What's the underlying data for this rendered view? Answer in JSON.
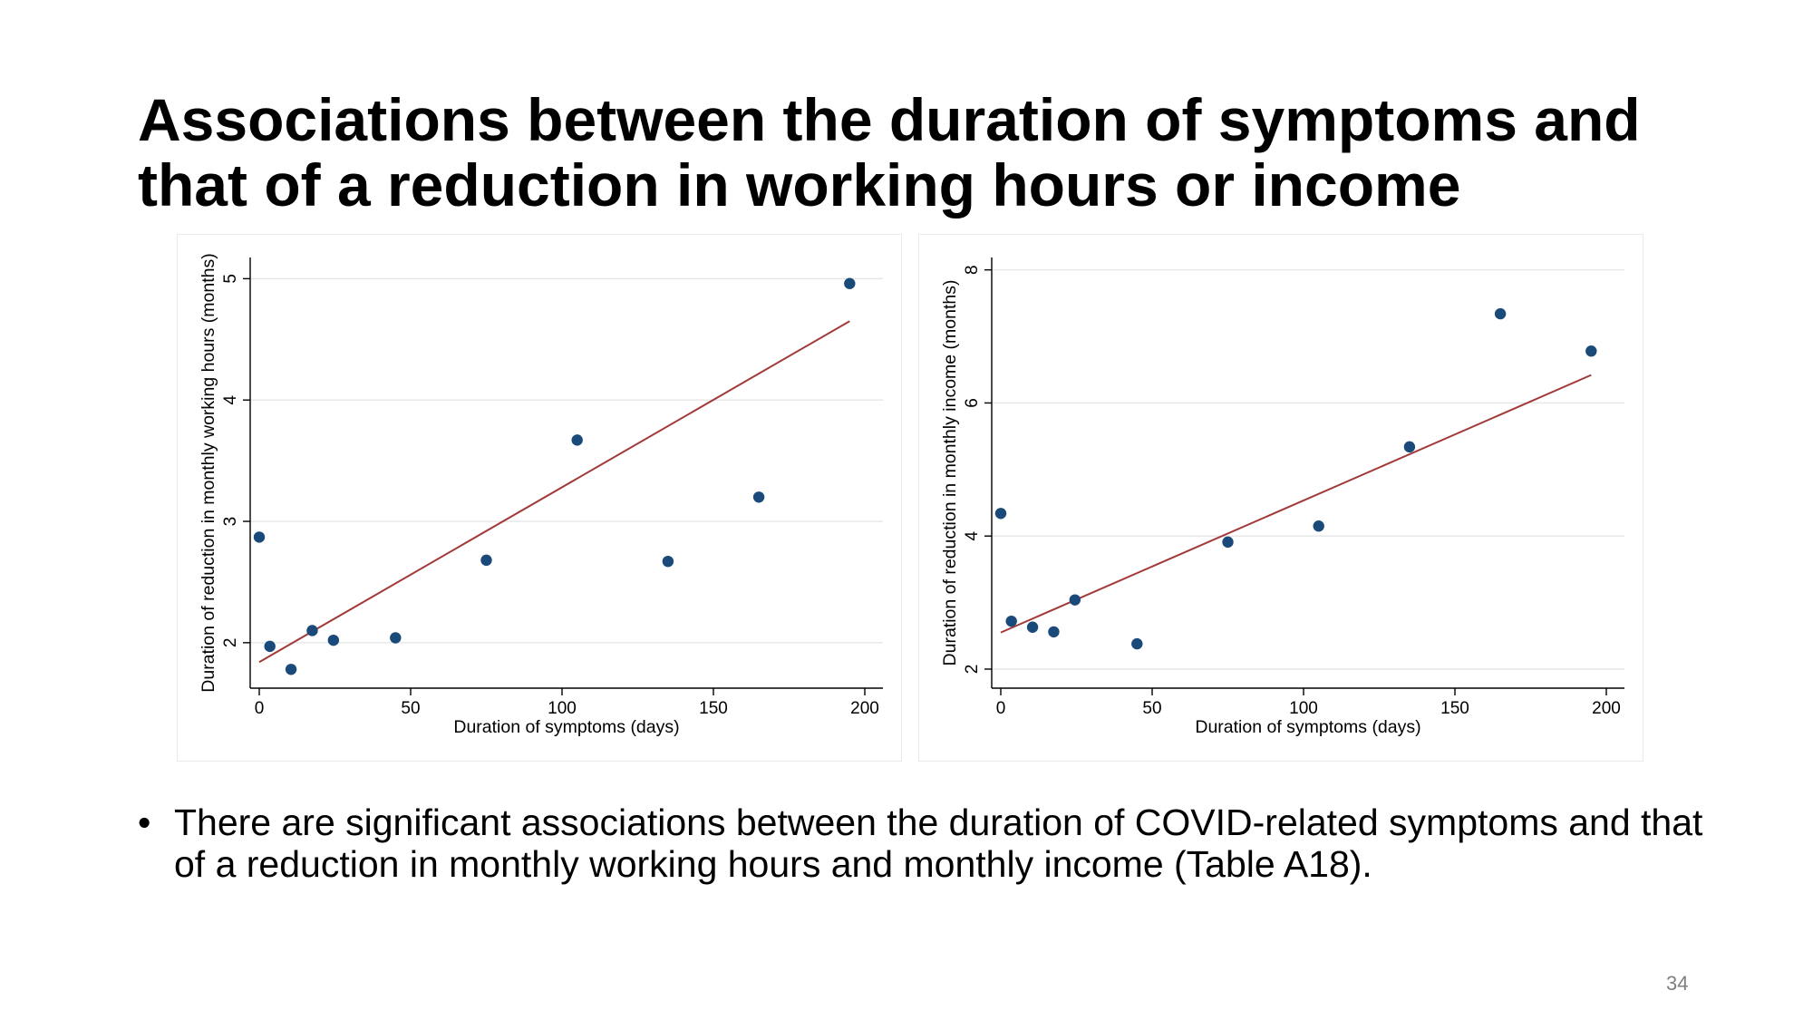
{
  "slide": {
    "title": "Associations between the duration of symptoms and that of a reduction in working hours or income",
    "bullet": "There are significant associations between the duration of COVID-related symptoms and that of a reduction in monthly working hours and monthly income (Table A18).",
    "bullet_marker": "•",
    "page_number": "34"
  },
  "chart_data": [
    {
      "type": "scatter",
      "xlabel": "Duration of symptoms (days)",
      "ylabel": "Duration of reduction in monthly working hours (months)",
      "xlim": [
        0,
        200
      ],
      "ylim": [
        1.7,
        5.1
      ],
      "xticks": [
        0,
        50,
        100,
        150,
        200
      ],
      "yticks": [
        2,
        3,
        4,
        5
      ],
      "grid": true,
      "points": [
        {
          "x": 0,
          "y": 2.87
        },
        {
          "x": 3.5,
          "y": 1.97
        },
        {
          "x": 10.5,
          "y": 1.78
        },
        {
          "x": 17.5,
          "y": 2.1
        },
        {
          "x": 24.5,
          "y": 2.02
        },
        {
          "x": 45,
          "y": 2.04
        },
        {
          "x": 75,
          "y": 2.68
        },
        {
          "x": 105,
          "y": 3.67
        },
        {
          "x": 135,
          "y": 2.67
        },
        {
          "x": 165,
          "y": 3.2
        },
        {
          "x": 195,
          "y": 4.96
        }
      ],
      "fit_line": {
        "x": [
          0,
          195
        ],
        "y": [
          1.84,
          4.65
        ]
      },
      "colors": {
        "points": "#1a4a7a",
        "fit_line": "#a23a3a"
      }
    },
    {
      "type": "scatter",
      "xlabel": "Duration of symptoms (days)",
      "ylabel": "Duration of reduction in monthly income (months)",
      "xlim": [
        0,
        200
      ],
      "ylim": [
        1.85,
        8.05
      ],
      "xticks": [
        0,
        50,
        100,
        150,
        200
      ],
      "yticks": [
        2,
        4,
        6,
        8
      ],
      "grid": true,
      "points": [
        {
          "x": 0,
          "y": 4.34
        },
        {
          "x": 3.5,
          "y": 2.72
        },
        {
          "x": 10.5,
          "y": 2.63
        },
        {
          "x": 17.5,
          "y": 2.56
        },
        {
          "x": 24.5,
          "y": 3.04
        },
        {
          "x": 45,
          "y": 2.38
        },
        {
          "x": 75,
          "y": 3.91
        },
        {
          "x": 105,
          "y": 4.15
        },
        {
          "x": 135,
          "y": 5.34
        },
        {
          "x": 165,
          "y": 7.34
        },
        {
          "x": 195,
          "y": 6.78
        }
      ],
      "fit_line": {
        "x": [
          0,
          195
        ],
        "y": [
          2.55,
          6.42
        ]
      },
      "colors": {
        "points": "#1a4a7a",
        "fit_line": "#a23a3a"
      }
    }
  ]
}
